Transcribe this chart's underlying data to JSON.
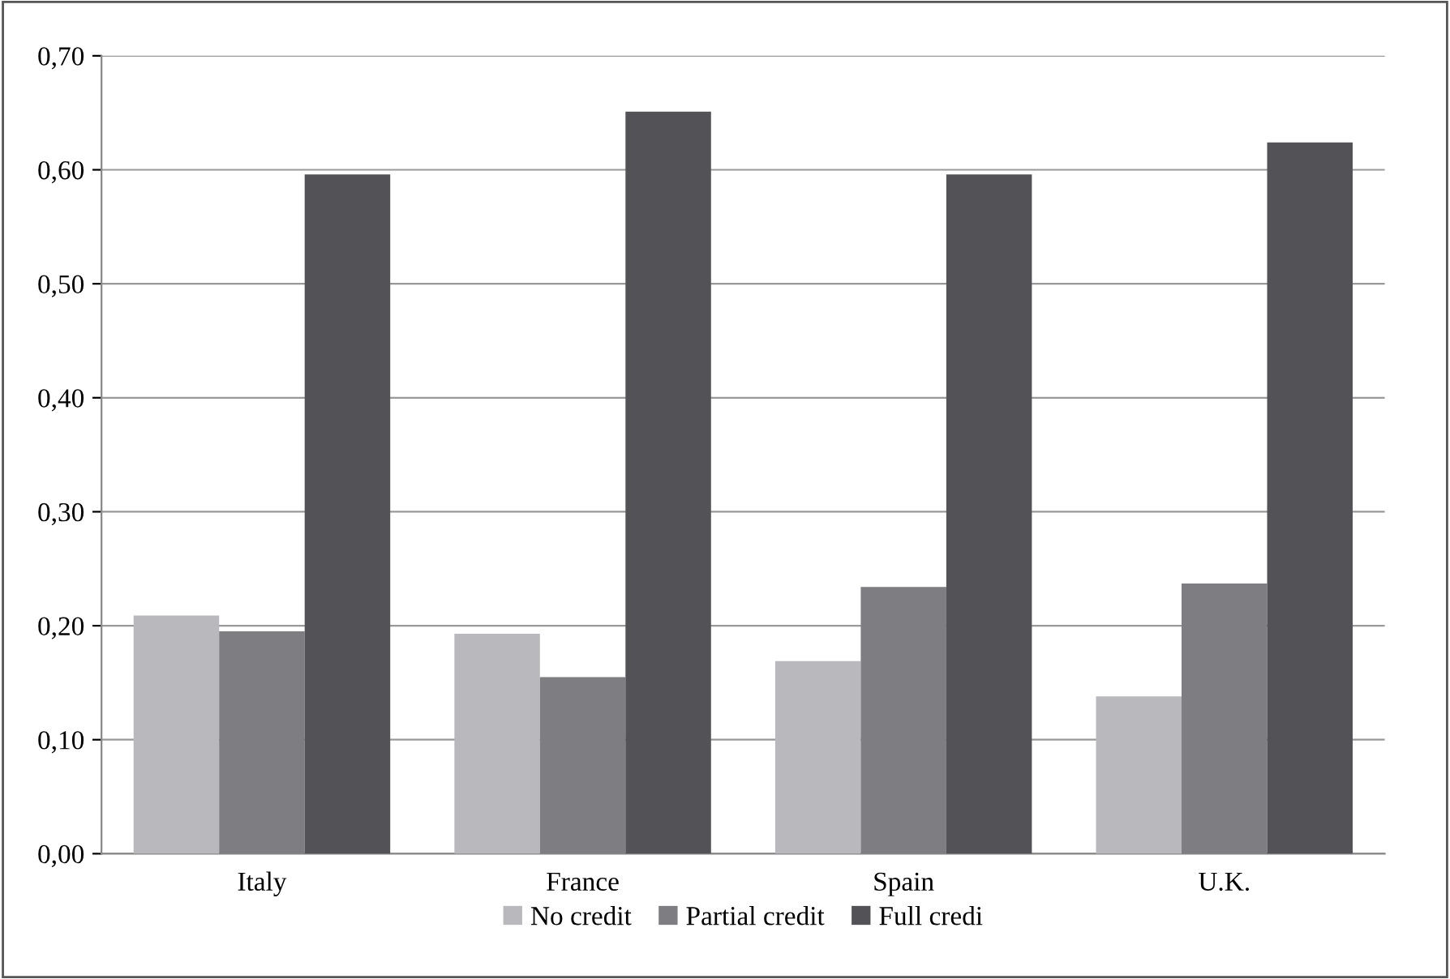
{
  "chart_data": {
    "type": "bar",
    "categories": [
      "Italy",
      "France",
      "Spain",
      "U.K."
    ],
    "series": [
      {
        "name": "No credit",
        "color": "#b9b9bd",
        "values": [
          0.209,
          0.193,
          0.169,
          0.138
        ]
      },
      {
        "name": "Partial credit",
        "color": "#7d7d82",
        "values": [
          0.195,
          0.155,
          0.234,
          0.237
        ]
      },
      {
        "name": "Full credi",
        "color": "#535357",
        "values": [
          0.596,
          0.651,
          0.596,
          0.624
        ]
      }
    ],
    "ylim": [
      0,
      0.7
    ],
    "yticks": [
      {
        "value": 0,
        "label": "0,00"
      },
      {
        "value": 0.1,
        "label": "0,10"
      },
      {
        "value": 0.2,
        "label": "0,20"
      },
      {
        "value": 0.3,
        "label": "0,30"
      },
      {
        "value": 0.4,
        "label": "0,40"
      },
      {
        "value": 0.5,
        "label": "0,50"
      },
      {
        "value": 0.6,
        "label": "0,60"
      },
      {
        "value": 0.7,
        "label": "0,70"
      }
    ],
    "grid": "y",
    "legend": "bottom"
  }
}
